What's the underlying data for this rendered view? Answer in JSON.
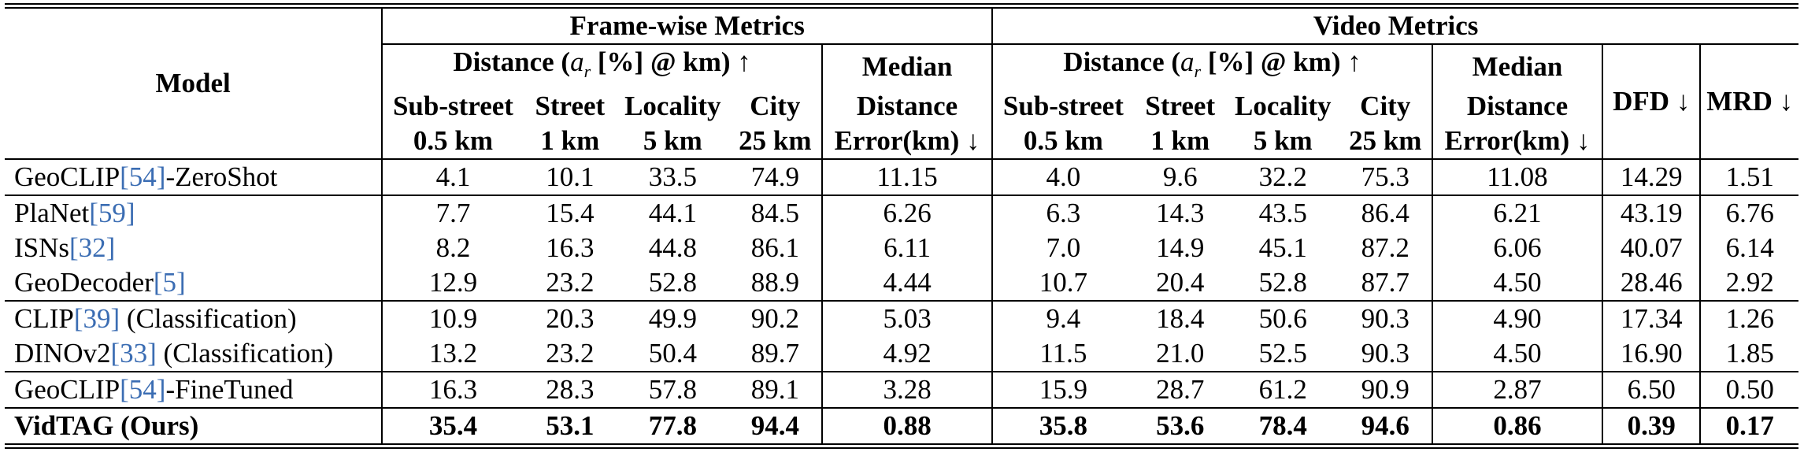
{
  "table": {
    "model_header": "Model",
    "frame_header": "Frame-wise Metrics",
    "video_header": "Video Metrics",
    "distance_group": {
      "prefix": "Distance (",
      "var": "a",
      "sub": "r",
      "suffix": " [%] @ km) ↑"
    },
    "thresholds": [
      {
        "name": "Sub-street",
        "km": "0.5 km"
      },
      {
        "name": "Street",
        "km": "1 km"
      },
      {
        "name": "Locality",
        "km": "5 km"
      },
      {
        "name": "City",
        "km": "25 km"
      }
    ],
    "median": {
      "line1": "Median",
      "line2": "Distance",
      "line3": "Error(km) ↓"
    },
    "dfd_header": "DFD ↓",
    "mrd_header": "MRD ↓",
    "rows": [
      {
        "name": "GeoCLIP",
        "cite": "[54]",
        "suffix": "-ZeroShot",
        "bold": false,
        "values": [
          "4.1",
          "10.1",
          "33.5",
          "74.9",
          "11.15",
          "4.0",
          "9.6",
          "32.2",
          "75.3",
          "11.08",
          "14.29",
          "1.51"
        ]
      },
      {
        "name": "PlaNet",
        "cite": "[59]",
        "suffix": "",
        "bold": false,
        "values": [
          "7.7",
          "15.4",
          "44.1",
          "84.5",
          "6.26",
          "6.3",
          "14.3",
          "43.5",
          "86.4",
          "6.21",
          "43.19",
          "6.76"
        ]
      },
      {
        "name": "ISNs",
        "cite": "[32]",
        "suffix": "",
        "bold": false,
        "values": [
          "8.2",
          "16.3",
          "44.8",
          "86.1",
          "6.11",
          "7.0",
          "14.9",
          "45.1",
          "87.2",
          "6.06",
          "40.07",
          "6.14"
        ]
      },
      {
        "name": "GeoDecoder",
        "cite": "[5]",
        "suffix": "",
        "bold": false,
        "values": [
          "12.9",
          "23.2",
          "52.8",
          "88.9",
          "4.44",
          "10.7",
          "20.4",
          "52.8",
          "87.7",
          "4.50",
          "28.46",
          "2.92"
        ]
      },
      {
        "name": "CLIP",
        "cite": "[39]",
        "suffix": " (Classification)",
        "bold": false,
        "values": [
          "10.9",
          "20.3",
          "49.9",
          "90.2",
          "5.03",
          "9.4",
          "18.4",
          "50.6",
          "90.3",
          "4.90",
          "17.34",
          "1.26"
        ]
      },
      {
        "name": "DINOv2",
        "cite": "[33]",
        "suffix": " (Classification)",
        "bold": false,
        "values": [
          "13.2",
          "23.2",
          "50.4",
          "89.7",
          "4.92",
          "11.5",
          "21.0",
          "52.5",
          "90.3",
          "4.50",
          "16.90",
          "1.85"
        ]
      },
      {
        "name": "GeoCLIP",
        "cite": "[54]",
        "suffix": "-FineTuned",
        "bold": false,
        "values": [
          "16.3",
          "28.3",
          "57.8",
          "89.1",
          "3.28",
          "15.9",
          "28.7",
          "61.2",
          "90.9",
          "2.87",
          "6.50",
          "0.50"
        ]
      },
      {
        "name": "VidTAG (Ours)",
        "cite": "",
        "suffix": "",
        "bold": true,
        "values": [
          "35.4",
          "53.1",
          "77.8",
          "94.4",
          "0.88",
          "35.8",
          "53.6",
          "78.4",
          "94.6",
          "0.86",
          "0.39",
          "0.17"
        ]
      }
    ]
  }
}
